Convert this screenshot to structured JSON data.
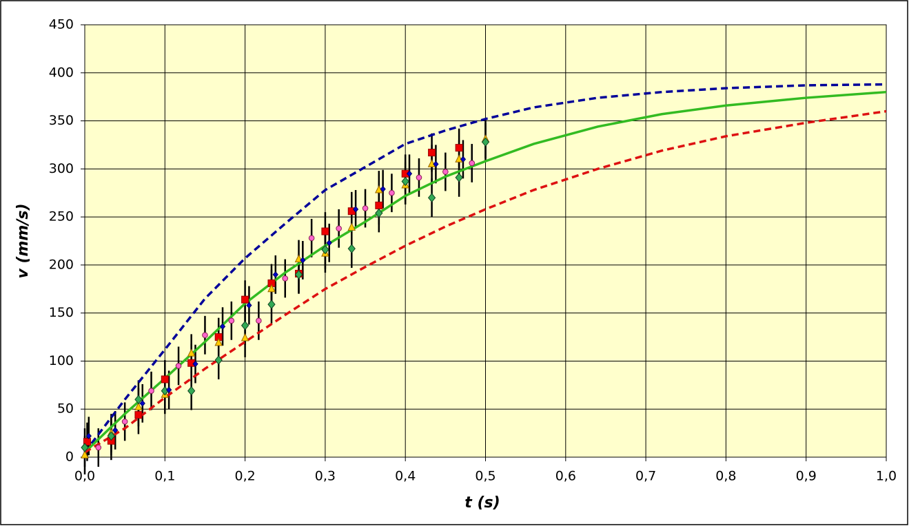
{
  "chart_data": {
    "type": "scatter",
    "x_label": "t  (s)",
    "y_label": "v  (mm/s)",
    "xlim": [
      0,
      1
    ],
    "ylim": [
      0,
      450
    ],
    "xticks": [
      {
        "value": 0,
        "label": "0,0"
      },
      {
        "value": 0.1,
        "label": "0,1"
      },
      {
        "value": 0.2,
        "label": "0,2"
      },
      {
        "value": 0.3,
        "label": "0,3"
      },
      {
        "value": 0.4,
        "label": "0,4"
      },
      {
        "value": 0.5,
        "label": "0,5"
      },
      {
        "value": 0.6,
        "label": "0,6"
      },
      {
        "value": 0.7,
        "label": "0,7"
      },
      {
        "value": 0.8,
        "label": "0,8"
      },
      {
        "value": 0.9,
        "label": "0,9"
      },
      {
        "value": 1,
        "label": "1,0"
      }
    ],
    "yticks": [
      0,
      50,
      100,
      150,
      200,
      250,
      300,
      350,
      400,
      450
    ],
    "grid": true,
    "background": "#ffffcc",
    "series": [
      {
        "kind": "line",
        "color": "#000099",
        "dash": true,
        "x": [
          0,
          0.05,
          0.1,
          0.15,
          0.2,
          0.25,
          0.3,
          0.35,
          0.4,
          0.45,
          0.5,
          0.56,
          0.64,
          0.72,
          0.8,
          0.9,
          1.0
        ],
        "values": [
          5,
          60,
          112,
          165,
          207,
          243,
          278,
          302,
          326,
          340,
          352,
          364,
          374,
          380,
          384,
          387,
          388
        ]
      },
      {
        "kind": "line",
        "color": "#33bb22",
        "dash": false,
        "x": [
          0,
          0.05,
          0.1,
          0.15,
          0.2,
          0.25,
          0.3,
          0.35,
          0.4,
          0.45,
          0.5,
          0.56,
          0.64,
          0.72,
          0.8,
          0.9,
          1.0
        ],
        "values": [
          5,
          45,
          82,
          120,
          160,
          192,
          220,
          245,
          272,
          292,
          308,
          326,
          344,
          357,
          366,
          374,
          380
        ]
      },
      {
        "kind": "line",
        "color": "#dd1111",
        "dash": true,
        "x": [
          0,
          0.05,
          0.1,
          0.15,
          0.2,
          0.25,
          0.3,
          0.35,
          0.4,
          0.45,
          0.5,
          0.56,
          0.64,
          0.72,
          0.8,
          0.9,
          1.0
        ],
        "values": [
          5,
          30,
          62,
          92,
          120,
          148,
          175,
          198,
          220,
          240,
          258,
          278,
          300,
          319,
          334,
          348,
          360
        ]
      },
      {
        "kind": "points",
        "marker": "square",
        "color": "#ee0000",
        "error": 20,
        "x": [
          0.003,
          0.033,
          0.067,
          0.1,
          0.133,
          0.167,
          0.2,
          0.233,
          0.267,
          0.3,
          0.333,
          0.367,
          0.4,
          0.433,
          0.467
        ],
        "values": [
          16,
          17,
          44,
          81,
          98,
          125,
          164,
          181,
          191,
          235,
          256,
          262,
          295,
          317,
          322
        ]
      },
      {
        "kind": "points",
        "marker": "triangle",
        "color": "#ffcc00",
        "error": 20,
        "x": [
          0,
          0.033,
          0.067,
          0.1,
          0.133,
          0.167,
          0.2,
          0.233,
          0.267,
          0.3,
          0.333,
          0.367,
          0.4,
          0.433,
          0.467,
          0.5
        ],
        "values": [
          2,
          25,
          52,
          65,
          108,
          119,
          124,
          175,
          206,
          212,
          239,
          278,
          283,
          305,
          310,
          331
        ]
      },
      {
        "kind": "points",
        "marker": "diamond",
        "color": "#33aa55",
        "error": 20,
        "x": [
          0,
          0.033,
          0.067,
          0.1,
          0.133,
          0.167,
          0.2,
          0.233,
          0.267,
          0.3,
          0.333,
          0.367,
          0.4,
          0.433,
          0.467,
          0.5
        ],
        "values": [
          10,
          22,
          60,
          69,
          69,
          101,
          137,
          159,
          190,
          216,
          217,
          254,
          287,
          270,
          291,
          328
        ]
      },
      {
        "kind": "points",
        "marker": "small-diamond",
        "color": "#0000cc",
        "error": 20,
        "x": [
          0.005,
          0.038,
          0.072,
          0.105,
          0.138,
          0.172,
          0.205,
          0.238,
          0.272,
          0.305,
          0.338,
          0.372,
          0.405,
          0.438,
          0.472
        ],
        "values": [
          22,
          28,
          56,
          70,
          97,
          136,
          158,
          190,
          205,
          223,
          258,
          279,
          295,
          305,
          310
        ]
      },
      {
        "kind": "points",
        "marker": "circle",
        "color": "#ff66cc",
        "error": 20,
        "x": [
          0.017,
          0.05,
          0.083,
          0.117,
          0.15,
          0.183,
          0.217,
          0.25,
          0.283,
          0.317,
          0.35,
          0.383,
          0.417,
          0.45,
          0.483
        ],
        "values": [
          10,
          37,
          69,
          95,
          127,
          142,
          142,
          186,
          228,
          238,
          259,
          275,
          291,
          297,
          306
        ]
      }
    ]
  }
}
